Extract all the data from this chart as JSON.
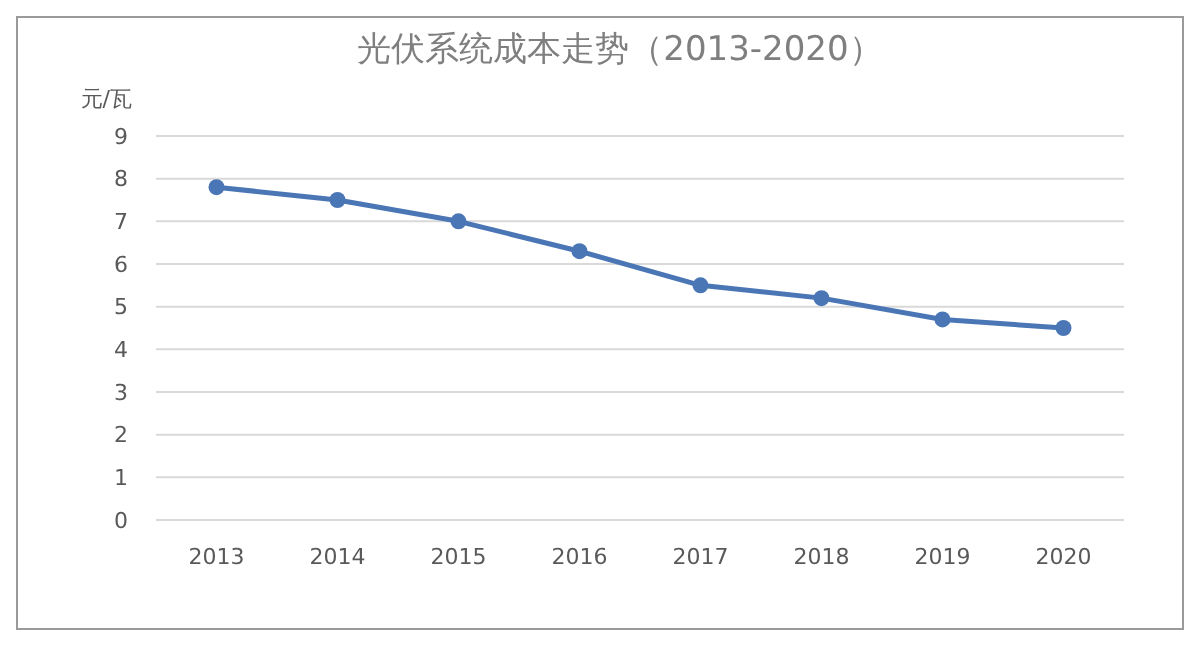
{
  "chart_data": {
    "type": "line",
    "title": "光伏系统成本走势（2013-2020）",
    "ylabel": "元/瓦",
    "categories": [
      "2013",
      "2014",
      "2015",
      "2016",
      "2017",
      "2018",
      "2019",
      "2020"
    ],
    "series": [
      {
        "color": "#4a76b5",
        "values": [
          7.8,
          7.5,
          7.0,
          6.3,
          5.5,
          5.2,
          4.7,
          4.5
        ]
      }
    ],
    "ylim": [
      0,
      9
    ],
    "yticks": [
      0,
      1,
      2,
      3,
      4,
      5,
      6,
      7,
      8,
      9
    ],
    "grid": "y",
    "marker": "circle",
    "line_style": "solid"
  }
}
